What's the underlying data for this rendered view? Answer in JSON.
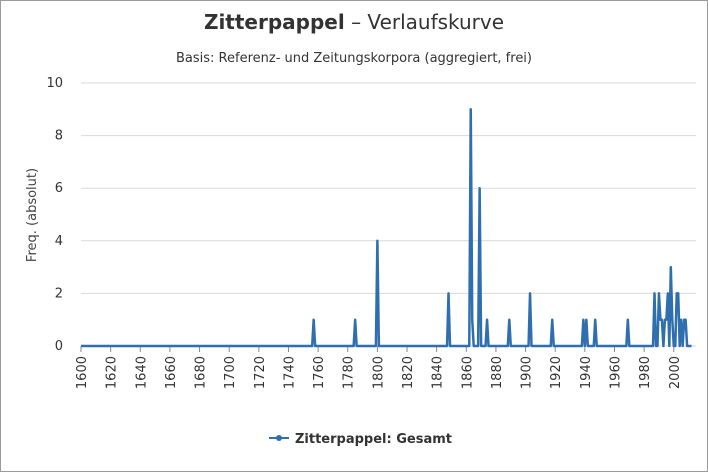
{
  "title_bold": "Zitterpappel",
  "title_rest": " – Verlaufskurve",
  "subtitle": "Basis: Referenz- und Zeitungskorpora (aggregiert, frei)",
  "legend_label": "Zitterpappel: Gesamt",
  "colors": {
    "series": "#2f6fb0",
    "grid": "#d9d9d9",
    "text": "#333333"
  },
  "chart_data": {
    "type": "line",
    "title": "Zitterpappel – Verlaufskurve",
    "subtitle": "Basis: Referenz- und Zeitungskorpora (aggregiert, frei)",
    "xlabel": "",
    "ylabel": "Freq. (absolut)",
    "xlim": [
      1600,
      2015
    ],
    "ylim": [
      0,
      10
    ],
    "x_ticks": [
      1600,
      1620,
      1640,
      1660,
      1680,
      1700,
      1720,
      1740,
      1760,
      1780,
      1800,
      1820,
      1840,
      1860,
      1880,
      1900,
      1920,
      1940,
      1960,
      1980,
      2000
    ],
    "y_ticks": [
      0,
      2,
      4,
      6,
      8,
      10
    ],
    "grid": true,
    "legend_position": "bottom",
    "series": [
      {
        "name": "Zitterpappel: Gesamt",
        "x": [
          1600,
          1756,
          1757,
          1758,
          1784,
          1785,
          1786,
          1799,
          1800,
          1801,
          1847,
          1848,
          1849,
          1862,
          1863,
          1864,
          1865,
          1868,
          1869,
          1870,
          1873,
          1874,
          1875,
          1888,
          1889,
          1890,
          1902,
          1903,
          1904,
          1917,
          1918,
          1919,
          1938,
          1939,
          1940,
          1941,
          1942,
          1946,
          1947,
          1948,
          1968,
          1969,
          1970,
          1986,
          1987,
          1988,
          1989,
          1990,
          1991,
          1992,
          1993,
          1994,
          1995,
          1996,
          1997,
          1998,
          1999,
          2000,
          2001,
          2002,
          2003,
          2004,
          2005,
          2006,
          2007,
          2008,
          2009,
          2010,
          2011,
          2012
        ],
        "y": [
          0,
          0,
          1,
          0,
          0,
          1,
          0,
          0,
          4,
          0,
          0,
          2,
          0,
          0,
          9,
          1,
          0,
          0,
          6,
          0,
          0,
          1,
          0,
          0,
          1,
          0,
          0,
          2,
          0,
          0,
          1,
          0,
          0,
          1,
          0,
          1,
          0,
          0,
          1,
          0,
          0,
          1,
          0,
          0,
          2,
          0,
          0,
          2,
          1,
          1,
          0,
          1,
          1,
          2,
          0,
          3,
          1,
          0,
          0,
          2,
          2,
          0,
          1,
          0,
          1,
          1,
          0,
          0,
          0,
          0
        ]
      }
    ]
  }
}
